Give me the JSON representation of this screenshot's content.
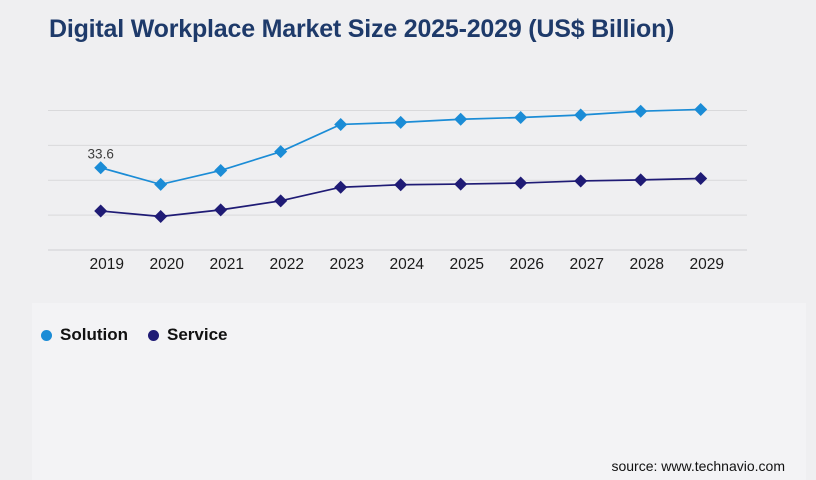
{
  "title": "Digital Workplace Market Size 2025-2029 (US$ Billion)",
  "source": "source: www.technavio.com",
  "colors": {
    "background": "#efeff1",
    "panel": "#f3f3f5",
    "title": "#1e3a6a",
    "grid": "#d9d9db",
    "axis_line": "#cfcfd3",
    "tick_label": "#1a1a1a",
    "annotation": "#3d3d3d",
    "legend_text": "#111111",
    "solution_series": "#1b8cd6",
    "service_series": "#1f1b75"
  },
  "chart_data": {
    "type": "line",
    "title": "Digital Workplace Market Size 2025-2029 (US$ Billion)",
    "x": [
      2019,
      2020,
      2021,
      2022,
      2023,
      2024,
      2025,
      2026,
      2027,
      2028,
      2029
    ],
    "series": [
      {
        "name": "Solution",
        "color": "#1b8cd6",
        "marker": "diamond",
        "values": [
          33.6,
          28.8,
          32.8,
          38.2,
          46.0,
          46.6,
          47.5,
          48.0,
          48.7,
          49.8,
          50.3
        ]
      },
      {
        "name": "Service",
        "color": "#1f1b75",
        "marker": "diamond",
        "values": [
          21.2,
          19.6,
          21.5,
          24.1,
          28.0,
          28.7,
          28.9,
          29.2,
          29.8,
          30.1,
          30.5
        ]
      }
    ],
    "ylim": [
      10,
      50
    ],
    "gridline_step": 10,
    "grid": "horizontal-only",
    "y_axis_labels_visible": false,
    "legend_position": "bottom-left",
    "annotations": [
      {
        "series": "Solution",
        "x": 2019,
        "text": "33.6"
      }
    ]
  }
}
